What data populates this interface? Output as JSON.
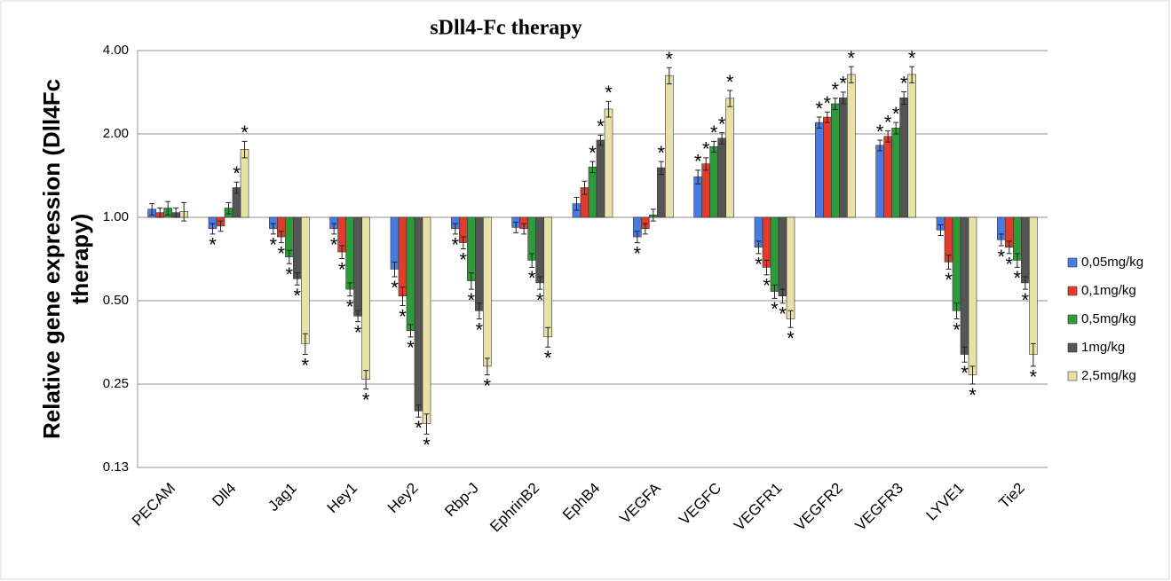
{
  "chart_data": {
    "type": "bar",
    "title": "sDll4-Fc therapy",
    "y_label": [
      "Relative gene expression (Dll4Fc",
      "therapy)"
    ],
    "yscale": "log",
    "grid": true,
    "legend": "right",
    "ylim": [
      0.125,
      4
    ],
    "yticks": [
      {
        "value": 0.125,
        "label": "0.13"
      },
      {
        "value": 0.25,
        "label": "0.25"
      },
      {
        "value": 0.5,
        "label": "0.50"
      },
      {
        "value": 1,
        "label": "1.00"
      },
      {
        "value": 2,
        "label": "2.00"
      },
      {
        "value": 4,
        "label": "4.00"
      }
    ],
    "categories": [
      "PECAM",
      "Dll4",
      "Jag1",
      "Hey1",
      "Hey2",
      "Rbp-J",
      "EphrinB2",
      "EphB4",
      "VEGFA",
      "VEGFC",
      "VEGFR1",
      "VEGFR2",
      "VEGFR3",
      "LYVE1",
      "Tie2"
    ],
    "series": [
      {
        "name": "0,05mg/kg",
        "color": "#4a7be3",
        "values": [
          1.07,
          0.91,
          0.91,
          0.91,
          0.65,
          0.91,
          0.92,
          1.12,
          0.85,
          1.4,
          0.78,
          2.2,
          1.82,
          0.9,
          0.83
        ],
        "errors": [
          0.05,
          0.04,
          0.04,
          0.04,
          0.04,
          0.04,
          0.04,
          0.06,
          0.04,
          0.08,
          0.04,
          0.1,
          0.08,
          0.04,
          0.04
        ],
        "significance": [
          null,
          "*",
          "*",
          "*",
          "*",
          "*",
          null,
          null,
          "*",
          "*",
          "*",
          "*",
          "*",
          null,
          "*"
        ]
      },
      {
        "name": "0,1mg/kg",
        "color": "#e03b2c",
        "values": [
          1.04,
          0.93,
          0.85,
          0.75,
          0.52,
          0.81,
          0.91,
          1.28,
          0.91,
          1.56,
          0.66,
          2.3,
          1.96,
          0.69,
          0.78
        ],
        "errors": [
          0.04,
          0.04,
          0.04,
          0.04,
          0.04,
          0.04,
          0.04,
          0.07,
          0.04,
          0.08,
          0.04,
          0.1,
          0.09,
          0.04,
          0.04
        ],
        "significance": [
          null,
          null,
          "*",
          "*",
          "*",
          "*",
          null,
          null,
          null,
          "*",
          "*",
          "*",
          "*",
          "*",
          "*"
        ]
      },
      {
        "name": "0,5mg/kg",
        "color": "#2e9a3c",
        "values": [
          1.08,
          1.08,
          0.72,
          0.55,
          0.39,
          0.59,
          0.7,
          1.52,
          1.02,
          1.8,
          0.54,
          2.57,
          2.1,
          0.46,
          0.7
        ],
        "errors": [
          0.06,
          0.05,
          0.04,
          0.03,
          0.02,
          0.04,
          0.04,
          0.07,
          0.05,
          0.08,
          0.03,
          0.12,
          0.1,
          0.03,
          0.04
        ],
        "significance": [
          null,
          null,
          "*",
          "*",
          "*",
          "*",
          "*",
          "*",
          null,
          "*",
          "*",
          "*",
          "*",
          "*",
          "*"
        ]
      },
      {
        "name": "1mg/kg",
        "color": "#555555",
        "values": [
          1.04,
          1.28,
          0.6,
          0.44,
          0.2,
          0.46,
          0.58,
          1.9,
          1.51,
          1.93,
          0.52,
          2.7,
          2.7,
          0.32,
          0.58
        ],
        "errors": [
          0.04,
          0.06,
          0.03,
          0.02,
          0.01,
          0.03,
          0.03,
          0.08,
          0.08,
          0.09,
          0.03,
          0.13,
          0.14,
          0.02,
          0.03
        ],
        "significance": [
          null,
          "*",
          "*",
          "*",
          "*",
          "*",
          "*",
          "*",
          "*",
          "*",
          "*",
          "*",
          "*",
          "*",
          "*"
        ]
      },
      {
        "name": "2,5mg/kg",
        "color": "#e8e2a8",
        "values": [
          1.05,
          1.76,
          0.35,
          0.26,
          0.18,
          0.29,
          0.37,
          2.46,
          3.25,
          2.69,
          0.43,
          3.28,
          3.28,
          0.27,
          0.32
        ],
        "errors": [
          0.08,
          0.12,
          0.03,
          0.02,
          0.015,
          0.02,
          0.03,
          0.16,
          0.22,
          0.18,
          0.03,
          0.22,
          0.22,
          0.02,
          0.03
        ],
        "significance": [
          null,
          "*",
          "*",
          "*",
          "*",
          "*",
          "*",
          "*",
          "*",
          "*",
          "*",
          "*",
          "*",
          "*",
          "*"
        ]
      }
    ]
  }
}
